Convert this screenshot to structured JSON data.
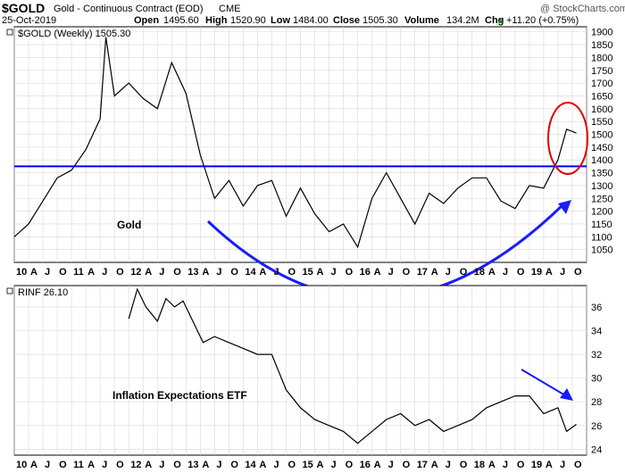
{
  "header": {
    "symbol": "$GOLD",
    "name": "Gold - Continuous Contract (EOD)",
    "exchange": "CME",
    "date": "25-Oct-2019",
    "stats": [
      {
        "label": "Open",
        "value": "1495.60"
      },
      {
        "label": "High",
        "value": "1520.90"
      },
      {
        "label": "Low",
        "value": "1484.00"
      },
      {
        "label": "Close",
        "value": "1505.30"
      },
      {
        "label": "Volume",
        "value": "134.2M"
      },
      {
        "label": "Chg",
        "value": "+11.20 (+0.75%)"
      }
    ],
    "watermark": "@ StockCharts.com",
    "up_arrow": "▲"
  },
  "chart_data": [
    {
      "type": "line",
      "panel": "top",
      "legend": "$GOLD (Weekly) 1505.30",
      "annotation": "Gold",
      "ylim": [
        1000,
        1920
      ],
      "yticks": [
        1050,
        1100,
        1150,
        1200,
        1250,
        1300,
        1350,
        1400,
        1450,
        1500,
        1550,
        1600,
        1650,
        1700,
        1750,
        1800,
        1850,
        1900
      ],
      "resistance_level": 1375,
      "x": [
        2010.0,
        2010.25,
        2010.5,
        2010.75,
        2011.0,
        2011.25,
        2011.5,
        2011.6,
        2011.75,
        2012.0,
        2012.25,
        2012.5,
        2012.75,
        2013.0,
        2013.25,
        2013.5,
        2013.75,
        2014.0,
        2014.25,
        2014.5,
        2014.75,
        2015.0,
        2015.25,
        2015.5,
        2015.75,
        2016.0,
        2016.25,
        2016.5,
        2016.75,
        2017.0,
        2017.25,
        2017.5,
        2017.75,
        2018.0,
        2018.25,
        2018.5,
        2018.75,
        2019.0,
        2019.25,
        2019.5,
        2019.65,
        2019.82
      ],
      "values": [
        1100,
        1150,
        1240,
        1330,
        1360,
        1440,
        1560,
        1880,
        1650,
        1700,
        1640,
        1600,
        1780,
        1660,
        1420,
        1250,
        1320,
        1220,
        1300,
        1320,
        1180,
        1290,
        1190,
        1120,
        1150,
        1060,
        1250,
        1350,
        1250,
        1150,
        1270,
        1230,
        1290,
        1330,
        1330,
        1240,
        1210,
        1300,
        1290,
        1400,
        1520,
        1505
      ]
    },
    {
      "type": "line",
      "panel": "bottom",
      "legend": "RINF 26.10",
      "annotation": "Inflation Expectations ETF",
      "ylim": [
        23.5,
        37.8
      ],
      "yticks": [
        24,
        26,
        28,
        30,
        32,
        34,
        36
      ],
      "x": [
        2012.0,
        2012.15,
        2012.3,
        2012.5,
        2012.65,
        2012.8,
        2012.95,
        2013.1,
        2013.3,
        2013.5,
        2013.75,
        2014.0,
        2014.25,
        2014.5,
        2014.75,
        2015.0,
        2015.25,
        2015.5,
        2015.75,
        2016.0,
        2016.25,
        2016.5,
        2016.75,
        2017.0,
        2017.25,
        2017.5,
        2017.75,
        2018.0,
        2018.25,
        2018.5,
        2018.75,
        2019.0,
        2019.25,
        2019.5,
        2019.65,
        2019.82
      ],
      "values": [
        35.0,
        37.5,
        36.0,
        34.8,
        36.7,
        36.0,
        36.5,
        35.0,
        33.0,
        33.5,
        33.0,
        32.5,
        32.0,
        32.0,
        29.0,
        27.5,
        26.5,
        26.0,
        25.5,
        24.5,
        25.5,
        26.5,
        27.0,
        26.0,
        26.5,
        25.5,
        26.0,
        26.5,
        27.5,
        28.0,
        28.5,
        28.5,
        27.0,
        27.5,
        25.5,
        26.1
      ]
    }
  ],
  "x_axis": {
    "labels": [
      "10",
      "A",
      "J",
      "O",
      "11",
      "A",
      "J",
      "O",
      "12",
      "A",
      "J",
      "O",
      "13",
      "A",
      "J",
      "O",
      "14",
      "A",
      "J",
      "O",
      "15",
      "A",
      "J",
      "O",
      "16",
      "A",
      "J",
      "O",
      "17",
      "A",
      "J",
      "O",
      "18",
      "A",
      "J",
      "O",
      "19",
      "A",
      "J",
      "O"
    ],
    "start": 2010.0,
    "step": 0.25
  },
  "colors": {
    "price": "#000000",
    "resistance": "#0000ff",
    "arc": "#1a1aff",
    "circle": "#e00000",
    "grid": "#d8d8d8",
    "up": "#00a000"
  }
}
